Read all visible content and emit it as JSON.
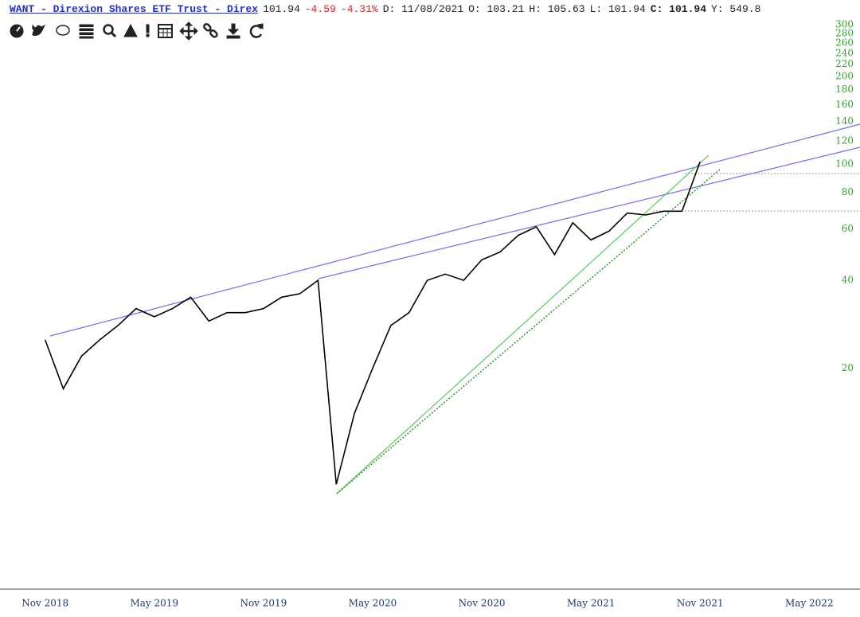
{
  "header": {
    "symbol": "WANT - Direxion Shares ETF Trust - Direx",
    "last": "101.94",
    "change": "-4.59",
    "change_pct": "-4.31%",
    "date": "D: 11/08/2021",
    "open": "O: 103.21",
    "high": "H: 105.63",
    "low": "L: 101.94",
    "close": "C: 101.94",
    "extra": "Y: 549.8"
  },
  "chart_data": {
    "type": "line",
    "log_scale": true,
    "color": "#000000",
    "tick_color": "#3a9a3a",
    "x": [
      "Nov 2018",
      "Dec 2018",
      "Jan 2019",
      "Feb 2019",
      "Mar 2019",
      "Apr 2019",
      "May 2019",
      "Jun 2019",
      "Jul 2019",
      "Aug 2019",
      "Sep 2019",
      "Oct 2019",
      "Nov 2019",
      "Dec 2019",
      "Jan 2020",
      "Feb 2020",
      "Mar 2020",
      "Apr 2020",
      "May 2020",
      "Jun 2020",
      "Jul 2020",
      "Aug 2020",
      "Sep 2020",
      "Oct 2020",
      "Nov 2020",
      "Dec 2020",
      "Jan 2021",
      "Feb 2021",
      "Mar 2021",
      "Apr 2021",
      "May 2021",
      "Jun 2021",
      "Jul 2021",
      "Aug 2021",
      "Sep 2021",
      "Oct 2021",
      "Nov 2021"
    ],
    "values": [
      25,
      17,
      22,
      25,
      28,
      32,
      30,
      32,
      35,
      29,
      31,
      31,
      32,
      35,
      36,
      40,
      8,
      14,
      20,
      28,
      31,
      40,
      42,
      40,
      47,
      50,
      57,
      61,
      49,
      63,
      55,
      59,
      68,
      67,
      69,
      69,
      101.94
    ],
    "xlim": [
      "Sep 2018",
      "Jul 2022"
    ],
    "xticks": [
      "Nov 2018",
      "May 2019",
      "Nov 2019",
      "May 2020",
      "Nov 2020",
      "May 2021",
      "Nov 2021",
      "May 2022"
    ],
    "ylim": [
      3.5,
      312
    ],
    "yticks": [
      20,
      40,
      60,
      80,
      100,
      120,
      140,
      160,
      180,
      200,
      220,
      240,
      260,
      280,
      300
    ]
  }
}
